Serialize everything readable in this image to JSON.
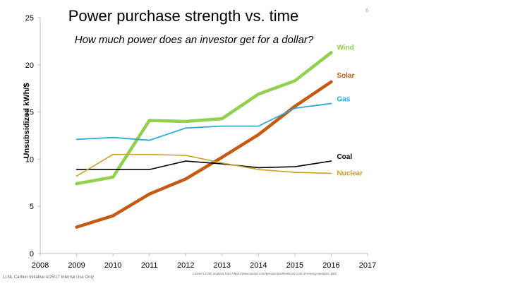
{
  "slide_number": "6",
  "footer": {
    "left": "LLNL Carbon Initiative 4/25/17 Internal Use Only",
    "source": "Lazard LCOE analysis from https://www.lazard.com/perspective/levelized-cost-of-energy-analysis-100/"
  },
  "chart_data": {
    "type": "line",
    "title": "Power purchase strength vs. time",
    "subtitle": "How much power does an investor get for a dollar?",
    "ylabel": "Unsubsidized  kWh/$",
    "xlabel": "",
    "xlim": [
      2008,
      2017
    ],
    "ylim": [
      0,
      25
    ],
    "x_ticks": [
      2008,
      2009,
      2010,
      2011,
      2012,
      2013,
      2014,
      2015,
      2016,
      2017
    ],
    "y_ticks": [
      0,
      5,
      10,
      15,
      20,
      25
    ],
    "grid": false,
    "legend": "inline labels at line ends",
    "x": [
      2009,
      2010,
      2011,
      2012,
      2013,
      2014,
      2015,
      2016
    ],
    "series": [
      {
        "name": "Wind",
        "color": "#92D050",
        "width": 4.5,
        "values": [
          7.4,
          8.1,
          14.1,
          14.0,
          14.3,
          16.9,
          18.3,
          21.3
        ]
      },
      {
        "name": "Solar",
        "color": "#C55A11",
        "width": 4.5,
        "values": [
          2.8,
          4.0,
          6.3,
          7.9,
          10.2,
          12.6,
          15.6,
          18.2
        ]
      },
      {
        "name": "Gas",
        "color": "#31A9D6",
        "width": 1.8,
        "values": [
          12.1,
          12.3,
          12.0,
          13.3,
          13.5,
          13.5,
          15.4,
          15.9
        ]
      },
      {
        "name": "Coal",
        "color": "#000000",
        "width": 1.6,
        "values": [
          8.9,
          8.9,
          8.9,
          9.8,
          9.5,
          9.1,
          9.2,
          9.8
        ]
      },
      {
        "name": "Nuclear",
        "color": "#C9A227",
        "width": 1.6,
        "values": [
          8.2,
          10.5,
          10.5,
          10.4,
          9.6,
          8.9,
          8.6,
          8.5
        ]
      }
    ]
  }
}
